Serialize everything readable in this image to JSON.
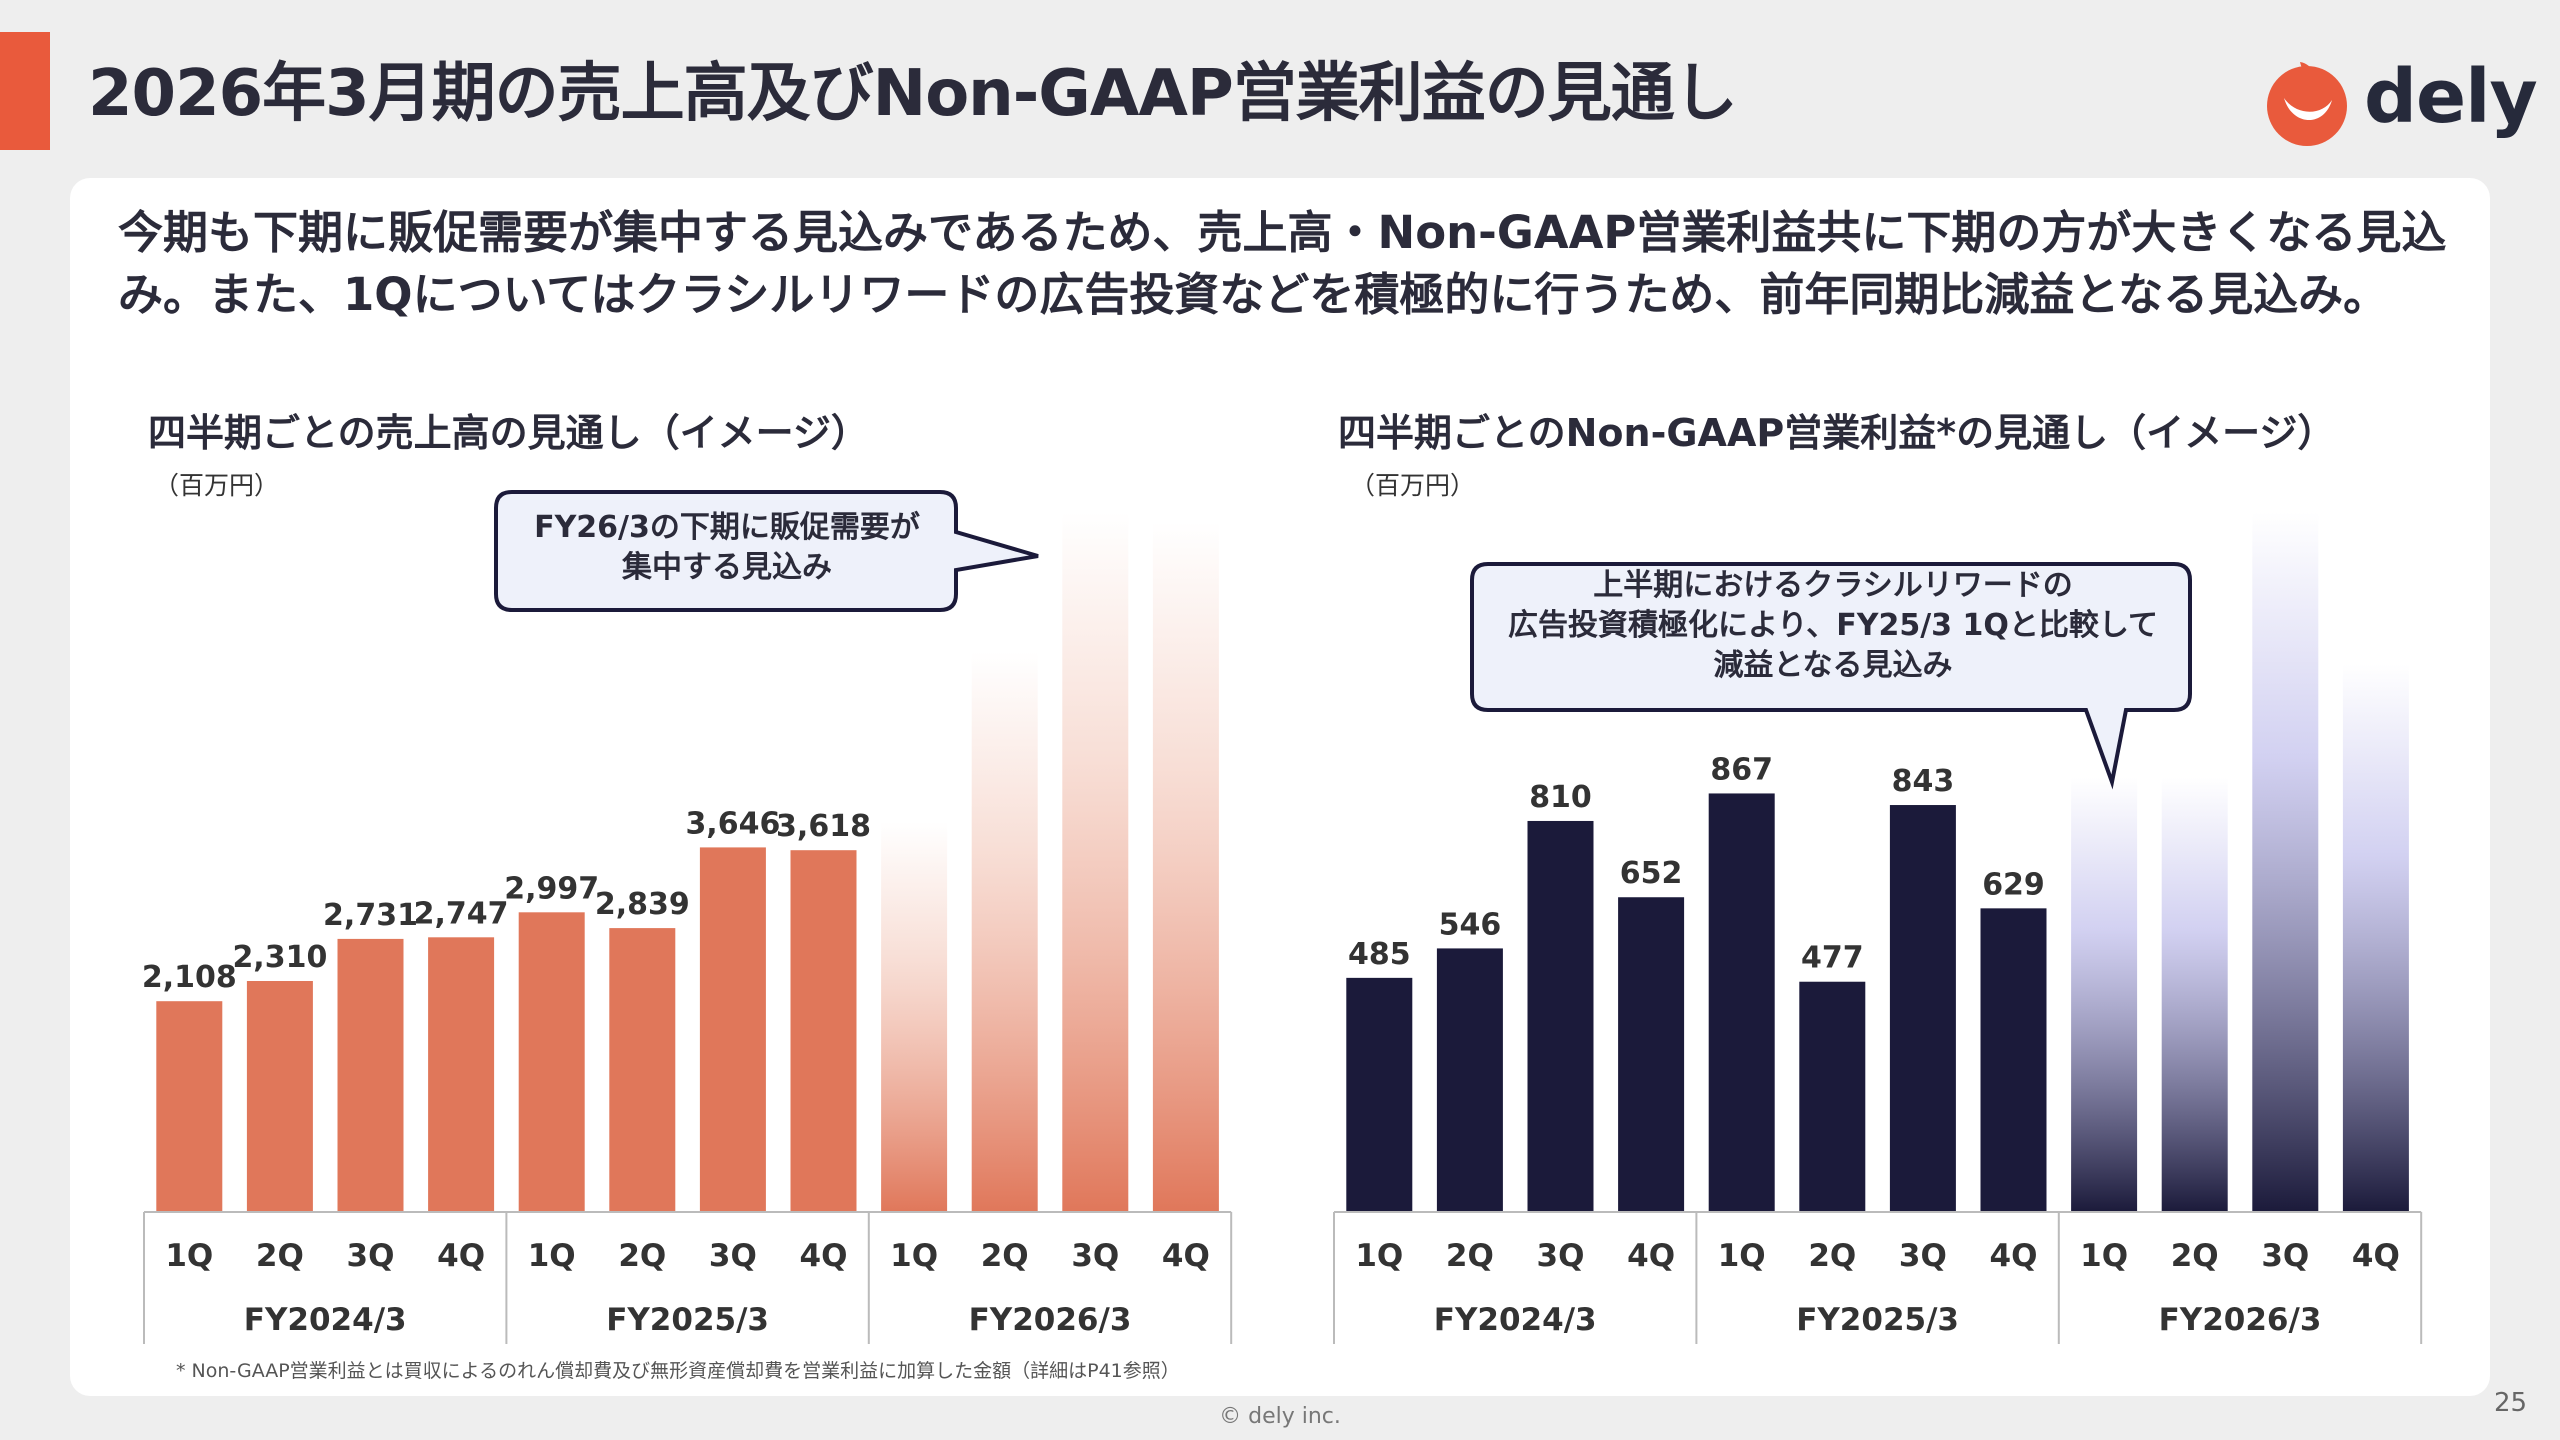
{
  "title": "2026年3月期の売上高及びNon-GAAP営業利益の見通し",
  "brand": {
    "name": "dely",
    "accent": "#e95a3c",
    "dark": "#1b1a3a"
  },
  "lead_text": "今期も下期に販促需要が集中する見込みであるため、売上高・Non-GAAP営業利益共に下期の方が大きくなる見込み。また、1Qについてはクラシルリワードの広告投資などを積極的に行うため、前年同期比減益となる見込み。",
  "footnote": "* Non-GAAP営業利益とは買収によるのれん償却費及び無形資産償却費を営業利益に加算した金額（詳細はP41参照）",
  "copyright": "© dely inc.",
  "page_number": "25",
  "chart_data": [
    {
      "type": "bar",
      "title": "四半期ごとの売上高の見通し（イメージ）",
      "unit": "（百万円）",
      "quarters": [
        "1Q",
        "2Q",
        "3Q",
        "4Q",
        "1Q",
        "2Q",
        "3Q",
        "4Q",
        "1Q",
        "2Q",
        "3Q",
        "4Q"
      ],
      "groups": [
        "FY2024/3",
        "FY2025/3",
        "FY2026/3"
      ],
      "values": [
        2108,
        2310,
        2731,
        2747,
        2997,
        2839,
        3646,
        3618,
        null,
        null,
        null,
        null
      ],
      "labels": [
        "2,108",
        "2,310",
        "2,731",
        "2,747",
        "2,997",
        "2,839",
        "3,646",
        "3,618",
        "",
        "",
        "",
        ""
      ],
      "image_bars": [
        3900,
        5600,
        7000,
        6900
      ],
      "ylim": [
        0,
        7000
      ],
      "color": "#e0775a",
      "callout": [
        "FY26/3の下期に販促需要が",
        "集中する見込み"
      ]
    },
    {
      "type": "bar",
      "title": "四半期ごとのNon-GAAP営業利益*の見通し（イメージ）",
      "unit": "（百万円）",
      "quarters": [
        "1Q",
        "2Q",
        "3Q",
        "4Q",
        "1Q",
        "2Q",
        "3Q",
        "4Q",
        "1Q",
        "2Q",
        "3Q",
        "4Q"
      ],
      "groups": [
        "FY2024/3",
        "FY2025/3",
        "FY2026/3"
      ],
      "values": [
        485,
        546,
        810,
        652,
        867,
        477,
        843,
        629,
        null,
        null,
        null,
        null
      ],
      "labels": [
        "485",
        "546",
        "810",
        "652",
        "867",
        "477",
        "843",
        "629",
        "",
        "",
        "",
        ""
      ],
      "image_bars": [
        900,
        900,
        1450,
        1135
      ],
      "ylim": [
        0,
        1450
      ],
      "color": "#1b1a3a",
      "callout": [
        "上半期におけるクラシルリワードの",
        "広告投資積極化により、FY25/3 1Qと比較して",
        "減益となる見込み"
      ]
    }
  ]
}
